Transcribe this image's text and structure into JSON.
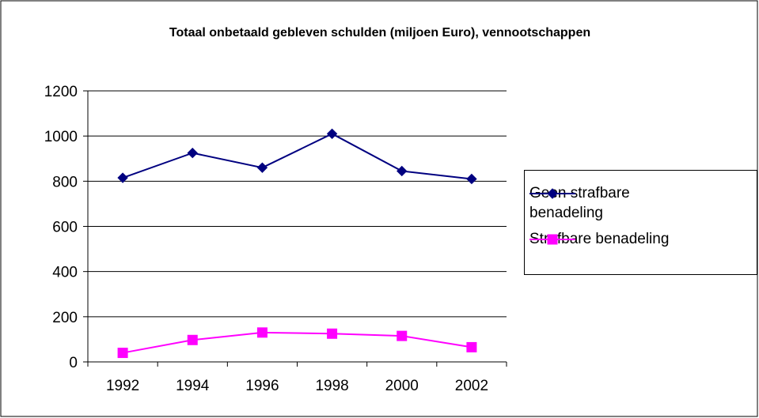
{
  "chart_data": {
    "type": "line",
    "title": "Totaal onbetaald gebleven schulden (miljoen Euro), vennootschappen",
    "categories": [
      "1992",
      "1994",
      "1996",
      "1998",
      "2000",
      "2002"
    ],
    "series": [
      {
        "name": "Geen strafbare benadeling",
        "color": "#000080",
        "marker": "diamond",
        "values": [
          815,
          925,
          860,
          1010,
          845,
          810
        ]
      },
      {
        "name": "Strafbare benadeling",
        "color": "#ff00ff",
        "marker": "square",
        "values": [
          40,
          97,
          130,
          125,
          115,
          65
        ]
      }
    ],
    "ylim": [
      0,
      1200
    ],
    "yticks": [
      0,
      200,
      400,
      600,
      800,
      1000,
      1200
    ],
    "grid": true,
    "legend": "right"
  }
}
